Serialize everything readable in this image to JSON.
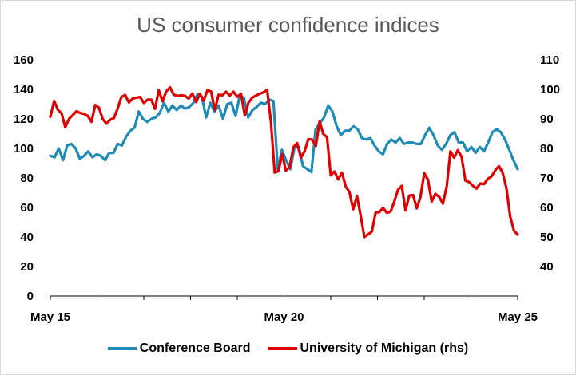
{
  "chart_data": {
    "type": "line",
    "title": "US consumer confidence indices",
    "x_tick_labels": [
      "May 15",
      "May 20",
      "May 25"
    ],
    "y_left": {
      "min": 0,
      "max": 160,
      "ticks": [
        0,
        20,
        40,
        60,
        80,
        100,
        120,
        140,
        160
      ]
    },
    "y_right": {
      "min": 30,
      "max": 110,
      "ticks": [
        40,
        50,
        60,
        70,
        80,
        90,
        100,
        110
      ]
    },
    "grid": false,
    "legend_position": "bottom",
    "series": [
      {
        "name": "Conference Board",
        "axis": "left",
        "color": "#1f8bb5",
        "start": "2015-05",
        "values": [
          95,
          94,
          100,
          92,
          102,
          103,
          100,
          93,
          95,
          98,
          94,
          96,
          95,
          92,
          97,
          97,
          103,
          102,
          108,
          112,
          114,
          125,
          120,
          118,
          120,
          121,
          124,
          131,
          125,
          129,
          126,
          129,
          127,
          128,
          131,
          137,
          135,
          121,
          131,
          125,
          129,
          120,
          130,
          131,
          122,
          136,
          134,
          121,
          126,
          128,
          131,
          130,
          133,
          132,
          86,
          99,
          92,
          86,
          101,
          101,
          88,
          86,
          84,
          113,
          117,
          121,
          129,
          125,
          115,
          109,
          112,
          112,
          115,
          113,
          107,
          106,
          107,
          102,
          98,
          96,
          103,
          106,
          104,
          107,
          103,
          104,
          104,
          103,
          103,
          109,
          114,
          109,
          102,
          99,
          103,
          109,
          111,
          104,
          104,
          98,
          101,
          97,
          101,
          98,
          104,
          111,
          113,
          111,
          106,
          99,
          92,
          86
        ]
      },
      {
        "name": "University of Michigan (rhs)",
        "axis": "right",
        "color": "#e00000",
        "start": "2015-05",
        "values": [
          90.7,
          96.1,
          93.1,
          91.9,
          87.2,
          90.0,
          91.3,
          92.6,
          92.0,
          91.7,
          91.0,
          89.0,
          94.7,
          93.8,
          90.0,
          88.4,
          89.7,
          90.3,
          93.5,
          97.4,
          98.1,
          95.6,
          96.9,
          97.2,
          97.4,
          95.4,
          96.5,
          96.5,
          93.4,
          99.7,
          96.0,
          99.3,
          100.7,
          98.2,
          97.8,
          98.0,
          97.8,
          96.9,
          98.6,
          95.7,
          98.5,
          96.2,
          99.7,
          99.3,
          93.0,
          98.2,
          98.0,
          99.2,
          97.9,
          99.2,
          97.5,
          98.5,
          91.2,
          95.5,
          97.2,
          97.9,
          98.5,
          99.0,
          99.8,
          89.1,
          71.8,
          72.3,
          78.1,
          72.5,
          73.7,
          80.4,
          81.8,
          76.9,
          79.0,
          83.1,
          83.0,
          80.8,
          89.1,
          84.9,
          83.8,
          70.9,
          72.2,
          69.5,
          71.8,
          67.1,
          65.2,
          59.4,
          63.9,
          57.3,
          50.0,
          50.9,
          51.8,
          58.3,
          58.4,
          59.9,
          58.2,
          58.6,
          62.0,
          66.0,
          67.3,
          59.0,
          64.0,
          64.2,
          59.7,
          63.5,
          71.6,
          69.4,
          62.0,
          64.6,
          63.6,
          61.3,
          67.0,
          79.0,
          76.9,
          79.4,
          77.2,
          69.1,
          68.6,
          67.4,
          66.4,
          68.1,
          67.9,
          69.7,
          70.5,
          72.6,
          74.0,
          71.7,
          66.4,
          57.0,
          52.2,
          50.8
        ]
      }
    ]
  }
}
